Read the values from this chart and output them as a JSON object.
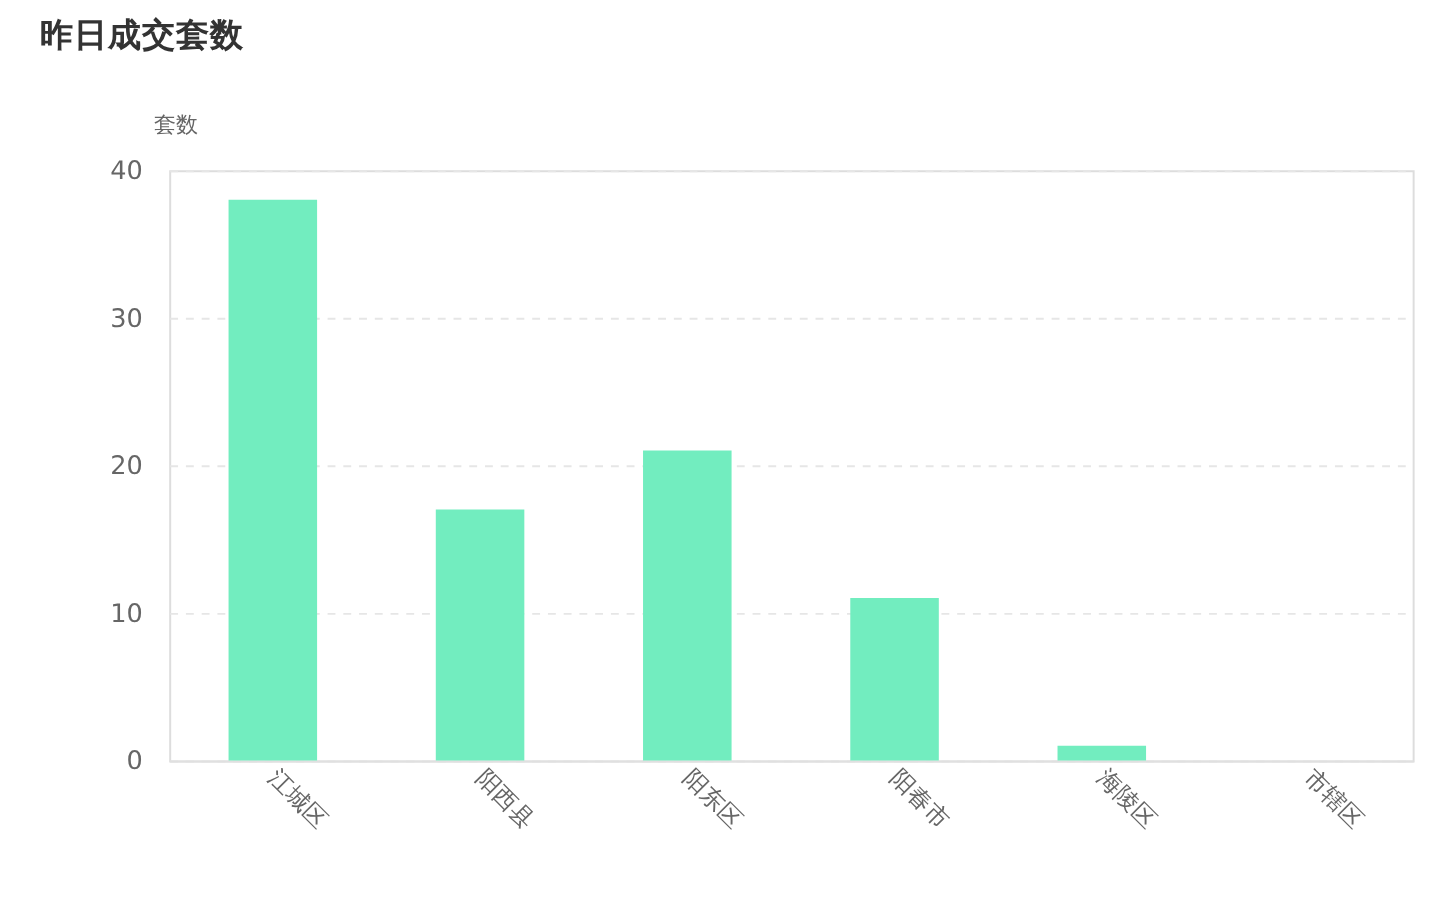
{
  "chart_data": {
    "type": "bar",
    "title": "昨日成交套数",
    "ylabel": "套数",
    "categories": [
      "江城区",
      "阳西县",
      "阳东区",
      "阳春市",
      "海陵区",
      "市辖区"
    ],
    "values": [
      38,
      17,
      21,
      11,
      1,
      0
    ],
    "color": "#72edbf",
    "ylim": [
      0,
      40
    ],
    "yticks": [
      0,
      10,
      20,
      30,
      40
    ],
    "grid": "y"
  }
}
